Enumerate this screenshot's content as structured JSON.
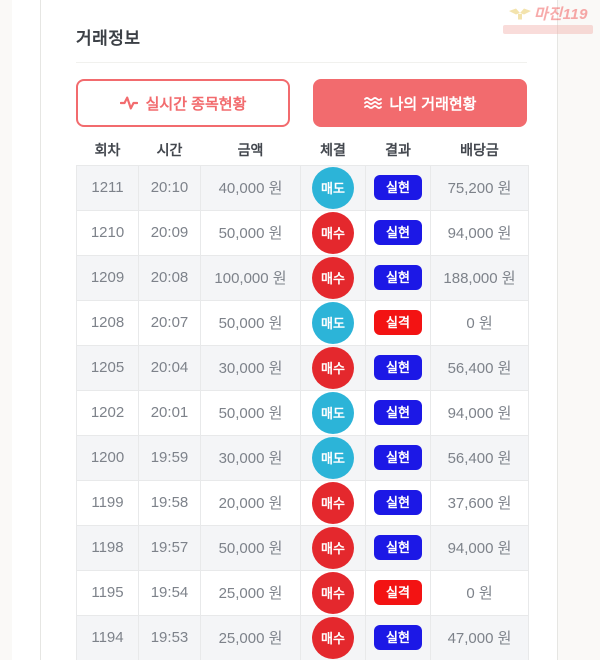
{
  "page": {
    "title": "거래정보"
  },
  "watermark": {
    "brand": "마진119"
  },
  "buttons": {
    "realtime": {
      "label": "실시간 종목현황",
      "icon": "activity-icon"
    },
    "my_trades": {
      "label": "나의 거래현황",
      "icon": "list-wave-icon"
    }
  },
  "table": {
    "columns": [
      "회차",
      "시간",
      "금액",
      "체결",
      "결과",
      "배당금"
    ],
    "rows": [
      {
        "round": "1211",
        "time": "20:10",
        "amount": "40,000 원",
        "side": "매도",
        "side_type": "sell",
        "result": "실현",
        "result_type": "realized",
        "payout": "75,200 원"
      },
      {
        "round": "1210",
        "time": "20:09",
        "amount": "50,000 원",
        "side": "매수",
        "side_type": "buy",
        "result": "실현",
        "result_type": "realized",
        "payout": "94,000 원"
      },
      {
        "round": "1209",
        "time": "20:08",
        "amount": "100,000 원",
        "side": "매수",
        "side_type": "buy",
        "result": "실현",
        "result_type": "realized",
        "payout": "188,000 원"
      },
      {
        "round": "1208",
        "time": "20:07",
        "amount": "50,000 원",
        "side": "매도",
        "side_type": "sell",
        "result": "실격",
        "result_type": "disqualified",
        "payout": "0 원"
      },
      {
        "round": "1205",
        "time": "20:04",
        "amount": "30,000 원",
        "side": "매수",
        "side_type": "buy",
        "result": "실현",
        "result_type": "realized",
        "payout": "56,400 원"
      },
      {
        "round": "1202",
        "time": "20:01",
        "amount": "50,000 원",
        "side": "매도",
        "side_type": "sell",
        "result": "실현",
        "result_type": "realized",
        "payout": "94,000 원"
      },
      {
        "round": "1200",
        "time": "19:59",
        "amount": "30,000 원",
        "side": "매도",
        "side_type": "sell",
        "result": "실현",
        "result_type": "realized",
        "payout": "56,400 원"
      },
      {
        "round": "1199",
        "time": "19:58",
        "amount": "20,000 원",
        "side": "매수",
        "side_type": "buy",
        "result": "실현",
        "result_type": "realized",
        "payout": "37,600 원"
      },
      {
        "round": "1198",
        "time": "19:57",
        "amount": "50,000 원",
        "side": "매수",
        "side_type": "buy",
        "result": "실현",
        "result_type": "realized",
        "payout": "94,000 원"
      },
      {
        "round": "1195",
        "time": "19:54",
        "amount": "25,000 원",
        "side": "매수",
        "side_type": "buy",
        "result": "실격",
        "result_type": "disqualified",
        "payout": "0 원"
      },
      {
        "round": "1194",
        "time": "19:53",
        "amount": "25,000 원",
        "side": "매수",
        "side_type": "buy",
        "result": "실현",
        "result_type": "realized",
        "payout": "47,000 원"
      }
    ]
  },
  "colors": {
    "accent_salmon": "#f26b6e",
    "sell_circle": "#2cb4d8",
    "buy_circle": "#e4282d",
    "realized_badge": "#1c18e6",
    "disqualified_badge": "#f31313",
    "alt_row_bg": "#f4f5f7",
    "cell_border": "#e8e9ea"
  }
}
